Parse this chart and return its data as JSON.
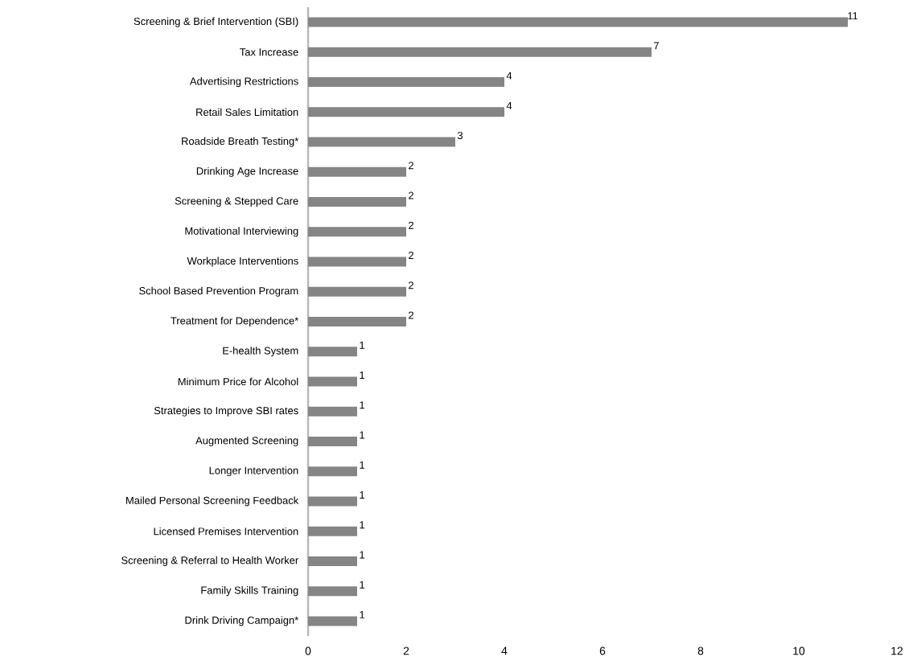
{
  "chart_data": {
    "type": "bar",
    "orientation": "horizontal",
    "categories": [
      "Screening & Brief Intervention (SBI)",
      "Tax Increase",
      "Advertising Restrictions",
      "Retail Sales Limitation",
      "Roadside Breath Testing*",
      "Drinking Age Increase",
      "Screening & Stepped Care",
      "Motivational Interviewing",
      "Workplace Interventions",
      "School Based Prevention Program",
      "Treatment for Dependence*",
      "E-health System",
      "Minimum Price for Alcohol",
      "Strategies to Improve SBI rates",
      "Augmented Screening",
      "Longer Intervention",
      "Mailed Personal Screening Feedback",
      "Licensed Premises Intervention",
      "Screening & Referral to Health Worker",
      "Family Skills Training",
      "Drink Driving Campaign*"
    ],
    "values": [
      11,
      7,
      4,
      4,
      3,
      2,
      2,
      2,
      2,
      2,
      2,
      1,
      1,
      1,
      1,
      1,
      1,
      1,
      1,
      1,
      1
    ],
    "color": "#858585",
    "xlim": [
      0,
      12
    ],
    "xticks": [
      0,
      2,
      4,
      6,
      8,
      10,
      12
    ],
    "data_labels": true
  }
}
